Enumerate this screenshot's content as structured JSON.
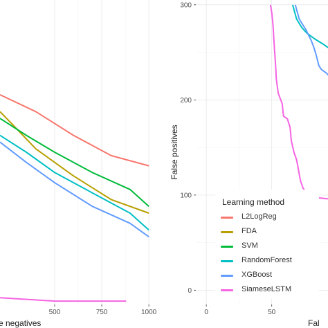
{
  "chart_data": [
    {
      "type": "line",
      "xlabel": "e negatives",
      "ylabel": "",
      "xlim": [
        210,
        1040
      ],
      "ylim": [
        0,
        90
      ],
      "x_ticks": [
        500,
        750,
        1000
      ],
      "x_tick_labels": [
        "500",
        "750",
        "1000"
      ],
      "grid": true,
      "series": [
        {
          "name": "L2LogReg",
          "color": "#F8766D",
          "points": [
            [
              210,
              62
            ],
            [
              400,
              57
            ],
            [
              600,
              50
            ],
            [
              800,
              44
            ],
            [
              1000,
              41
            ]
          ]
        },
        {
          "name": "FDA",
          "color": "#B79F00",
          "points": [
            [
              210,
              57
            ],
            [
              280,
              53
            ],
            [
              400,
              46
            ],
            [
              600,
              38
            ],
            [
              800,
              31
            ],
            [
              1000,
              27
            ]
          ]
        },
        {
          "name": "SVM",
          "color": "#00BA38",
          "points": [
            [
              210,
              55
            ],
            [
              350,
              50
            ],
            [
              500,
              45
            ],
            [
              700,
              39
            ],
            [
              900,
              34
            ],
            [
              1000,
              29
            ]
          ]
        },
        {
          "name": "RandomForest",
          "color": "#00BFC4",
          "points": [
            [
              210,
              50
            ],
            [
              350,
              45
            ],
            [
              500,
              39
            ],
            [
              700,
              33
            ],
            [
              900,
              27
            ],
            [
              1000,
              22
            ]
          ]
        },
        {
          "name": "XGBoost",
          "color": "#619CFF",
          "points": [
            [
              210,
              48
            ],
            [
              350,
              42
            ],
            [
              500,
              36
            ],
            [
              700,
              29
            ],
            [
              900,
              24
            ],
            [
              1000,
              20
            ]
          ]
        },
        {
          "name": "SiameseLSTM",
          "color": "#F564E3",
          "points": [
            [
              210,
              2
            ],
            [
              500,
              1
            ],
            [
              700,
              1
            ],
            [
              880,
              1
            ]
          ]
        }
      ]
    },
    {
      "type": "line",
      "xlabel": "Fal",
      "ylabel": "False positives",
      "xlim": [
        -8,
        93
      ],
      "ylim": [
        -15,
        305
      ],
      "x_ticks": [
        0,
        50
      ],
      "x_tick_labels": [
        "0",
        "50"
      ],
      "y_ticks": [
        0,
        100,
        200,
        300
      ],
      "y_tick_labels": [
        "0",
        "100",
        "200",
        "300"
      ],
      "grid": true,
      "series": [
        {
          "name": "SiameseLSTM",
          "color": "#F564E3",
          "points": [
            [
              49,
              300
            ],
            [
              50,
              292
            ],
            [
              51,
              278
            ],
            [
              52,
              255
            ],
            [
              53,
              235
            ],
            [
              53.5,
              222
            ],
            [
              55,
              207
            ],
            [
              58,
              196
            ],
            [
              59,
              183
            ],
            [
              62,
              180
            ],
            [
              64,
              171
            ],
            [
              65,
              157
            ],
            [
              67,
              145
            ],
            [
              69,
              137
            ],
            [
              70,
              130
            ],
            [
              71,
              122
            ],
            [
              72,
              115
            ],
            [
              74,
              107
            ],
            [
              77,
              102
            ],
            [
              80,
              98
            ],
            [
              93,
              96
            ]
          ]
        },
        {
          "name": "RandomForest",
          "color": "#00BFC4",
          "points": [
            [
              66,
              300
            ],
            [
              69,
              285
            ],
            [
              73,
              276
            ],
            [
              77,
              270
            ],
            [
              83,
              264
            ],
            [
              90,
              258
            ],
            [
              93,
              255
            ]
          ]
        },
        {
          "name": "XGBoost",
          "color": "#619CFF",
          "points": [
            [
              68,
              300
            ],
            [
              71,
              285
            ],
            [
              76,
              274
            ],
            [
              80,
              263
            ],
            [
              82,
              256
            ],
            [
              84,
              247
            ],
            [
              86,
              236
            ],
            [
              88,
              232
            ],
            [
              92,
              228
            ],
            [
              93,
              226
            ]
          ]
        }
      ],
      "legend": {
        "title": "Learning method",
        "position": "bottom-center",
        "entries": [
          {
            "label": "L2LogReg",
            "color": "#F8766D"
          },
          {
            "label": "FDA",
            "color": "#B79F00"
          },
          {
            "label": "SVM",
            "color": "#00BA38"
          },
          {
            "label": "RandomForest",
            "color": "#00BFC4"
          },
          {
            "label": "XGBoost",
            "color": "#619CFF"
          },
          {
            "label": "SiameseLSTM",
            "color": "#F564E3"
          }
        ]
      }
    }
  ]
}
